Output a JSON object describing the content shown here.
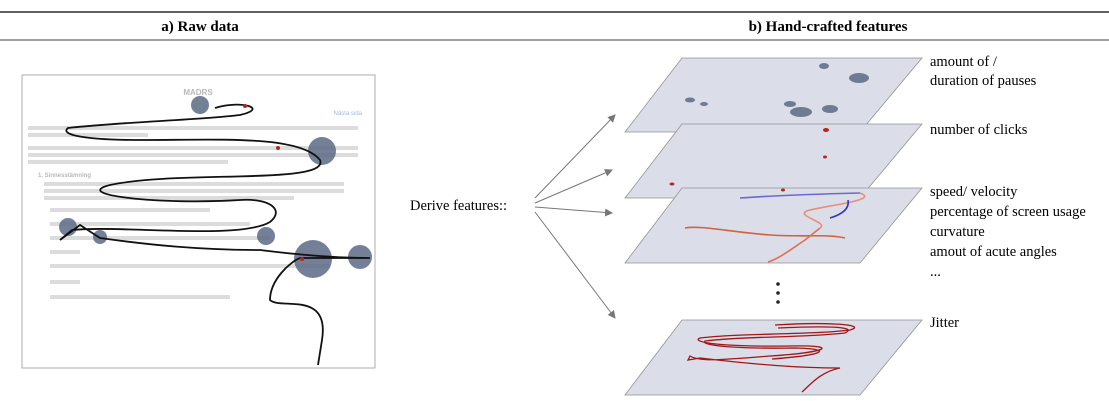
{
  "header": {
    "left_title": "a) Raw data",
    "right_title": "b) Hand-crafted features"
  },
  "screenshot": {
    "title": "MADRS",
    "next_link": "Nästa sida",
    "section": "1.   Sinnesstämning"
  },
  "derive_label": "Derive features::",
  "features": {
    "pauses": [
      "amount of /",
      "duration of pauses"
    ],
    "clicks": [
      "number of clicks"
    ],
    "motion": [
      "speed/ velocity",
      "percentage of screen usage",
      "curvature",
      "amout of acute angles",
      "..."
    ],
    "jitter": [
      "Jitter"
    ]
  }
}
